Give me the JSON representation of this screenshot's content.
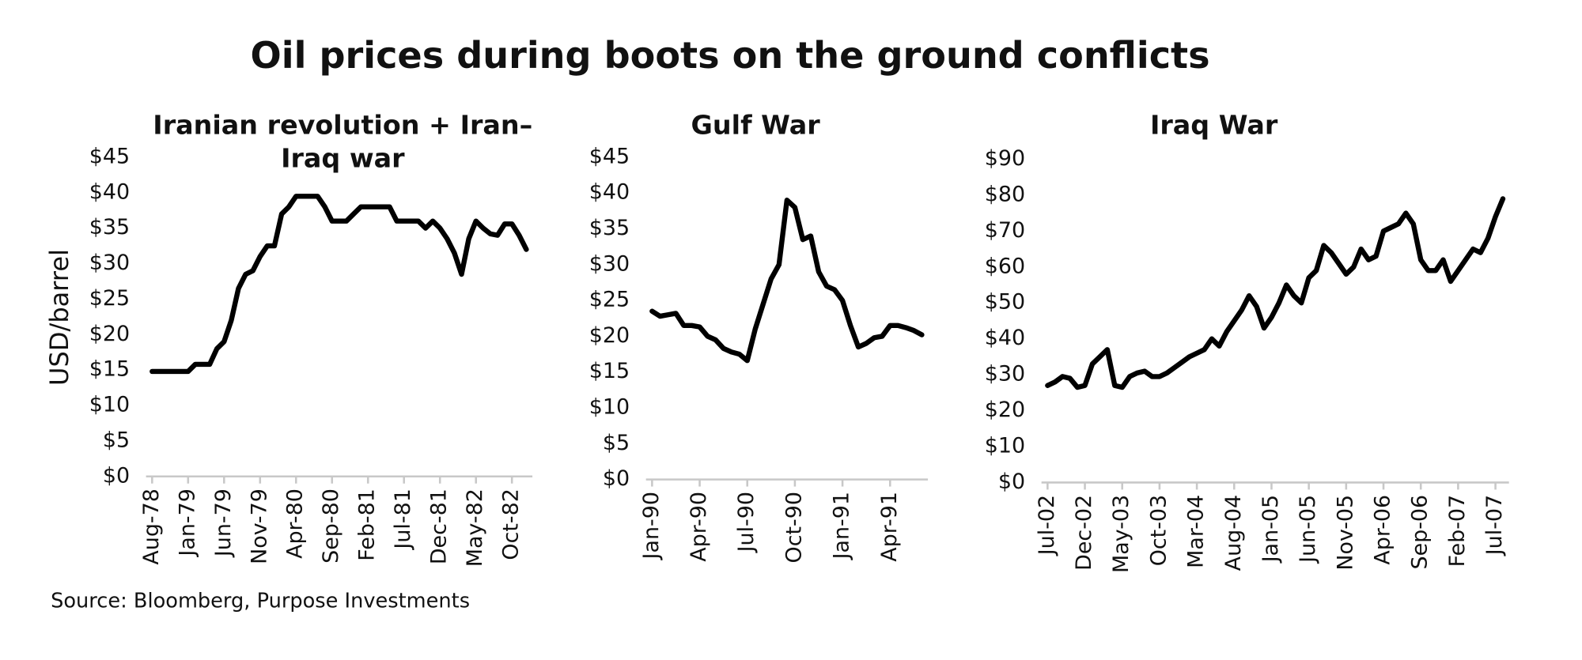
{
  "title": "Oil prices during boots on the ground conflicts",
  "source": "Source: Bloomberg, Purpose Investments",
  "chart_data": [
    {
      "type": "line",
      "title": "Iranian revolution + Iran–Iraq war",
      "ylabel": "USD/barrel",
      "color": "#000000",
      "categories": [
        "Aug-78",
        null,
        null,
        null,
        null,
        "Jan-79",
        null,
        null,
        null,
        null,
        "Jun-79",
        null,
        null,
        null,
        null,
        "Nov-79",
        null,
        null,
        null,
        null,
        "Apr-80",
        null,
        null,
        null,
        null,
        "Sep-80",
        null,
        null,
        null,
        null,
        "Feb-81",
        null,
        null,
        null,
        null,
        "Jul-81",
        null,
        null,
        null,
        null,
        "Dec-81",
        null,
        null,
        null,
        null,
        "May-82",
        null,
        null,
        null,
        null,
        "Oct-82",
        null,
        null
      ],
      "values": [
        14.8,
        14.8,
        14.8,
        14.8,
        14.8,
        14.8,
        15.8,
        15.8,
        15.8,
        18,
        19,
        22,
        26.5,
        28.5,
        29,
        31,
        32.5,
        32.5,
        37,
        38,
        39.5,
        39.5,
        39.5,
        39.5,
        38,
        36,
        36,
        36,
        37,
        38,
        38,
        38,
        38,
        38,
        36,
        36,
        36,
        36,
        35,
        36,
        35,
        33.5,
        31.5,
        28.5,
        33.5,
        36,
        35,
        34.2,
        34,
        35.6,
        35.6,
        34,
        32
      ],
      "ylim": [
        0,
        45
      ],
      "yticks": [
        {
          "value": 0,
          "label": "$0"
        },
        {
          "value": 5,
          "label": "$5"
        },
        {
          "value": 10,
          "label": "$10"
        },
        {
          "value": 15,
          "label": "$15"
        },
        {
          "value": 20,
          "label": "$20"
        },
        {
          "value": 25,
          "label": "$25"
        },
        {
          "value": 30,
          "label": "$30"
        },
        {
          "value": 35,
          "label": "$35"
        },
        {
          "value": 40,
          "label": "$40"
        },
        {
          "value": 45,
          "label": "$45"
        }
      ]
    },
    {
      "type": "line",
      "title": "Gulf War",
      "color": "#000000",
      "categories": [
        "Jan-90",
        null,
        null,
        null,
        null,
        null,
        "Apr-90",
        null,
        null,
        null,
        null,
        null,
        "Jul-90",
        null,
        null,
        null,
        null,
        null,
        "Oct-90",
        null,
        null,
        null,
        null,
        null,
        "Jan-91",
        null,
        null,
        null,
        null,
        null,
        "Apr-91",
        null,
        null,
        null,
        null
      ],
      "values": [
        23.5,
        22.8,
        23,
        23.2,
        21.5,
        21.5,
        21.3,
        20,
        19.5,
        18.3,
        17.8,
        17.5,
        16.6,
        21,
        24.5,
        28,
        30,
        39,
        38,
        33.5,
        34,
        29,
        27,
        26.5,
        25,
        21.5,
        18.5,
        19,
        19.8,
        20,
        21.5,
        21.5,
        21.2,
        20.8,
        20.2
      ],
      "ylim": [
        0,
        45
      ],
      "yticks": [
        {
          "value": 0,
          "label": "$0"
        },
        {
          "value": 5,
          "label": "$5"
        },
        {
          "value": 10,
          "label": "$10"
        },
        {
          "value": 15,
          "label": "$15"
        },
        {
          "value": 20,
          "label": "$20"
        },
        {
          "value": 25,
          "label": "$25"
        },
        {
          "value": 30,
          "label": "$30"
        },
        {
          "value": 35,
          "label": "$35"
        },
        {
          "value": 40,
          "label": "$40"
        },
        {
          "value": 45,
          "label": "$45"
        }
      ]
    },
    {
      "type": "line",
      "title": "Iraq War",
      "color": "#000000",
      "categories": [
        "Jul-02",
        null,
        null,
        null,
        null,
        "Dec-02",
        null,
        null,
        null,
        null,
        "May-03",
        null,
        null,
        null,
        null,
        "Oct-03",
        null,
        null,
        null,
        null,
        "Mar-04",
        null,
        null,
        null,
        null,
        "Aug-04",
        null,
        null,
        null,
        null,
        "Jan-05",
        null,
        null,
        null,
        null,
        "Jun-05",
        null,
        null,
        null,
        null,
        "Nov-05",
        null,
        null,
        null,
        null,
        "Apr-06",
        null,
        null,
        null,
        null,
        "Sep-06",
        null,
        null,
        null,
        null,
        "Feb-07",
        null,
        null,
        null,
        null,
        "Jul-07",
        null
      ],
      "values": [
        27,
        28,
        29.5,
        29,
        26.5,
        27,
        33,
        35,
        37,
        27,
        26.5,
        29.5,
        30.5,
        31,
        29.5,
        29.5,
        30.5,
        32,
        33.5,
        35,
        36,
        37,
        40,
        38,
        42,
        45,
        48,
        52,
        49,
        43,
        46,
        50,
        55,
        52,
        50,
        57,
        59,
        66,
        64,
        61,
        58,
        60,
        65,
        62,
        63,
        70,
        71,
        72,
        75,
        72,
        62,
        59,
        59,
        62,
        56,
        59,
        62,
        65,
        64,
        68,
        74,
        79
      ],
      "ylim": [
        0,
        90
      ],
      "yticks": [
        {
          "value": 0,
          "label": "$0"
        },
        {
          "value": 10,
          "label": "$10"
        },
        {
          "value": 20,
          "label": "$20"
        },
        {
          "value": 30,
          "label": "$30"
        },
        {
          "value": 40,
          "label": "$40"
        },
        {
          "value": 50,
          "label": "$50"
        },
        {
          "value": 60,
          "label": "$60"
        },
        {
          "value": 70,
          "label": "$70"
        },
        {
          "value": 80,
          "label": "$80"
        },
        {
          "value": 90,
          "label": "$90"
        }
      ]
    }
  ]
}
